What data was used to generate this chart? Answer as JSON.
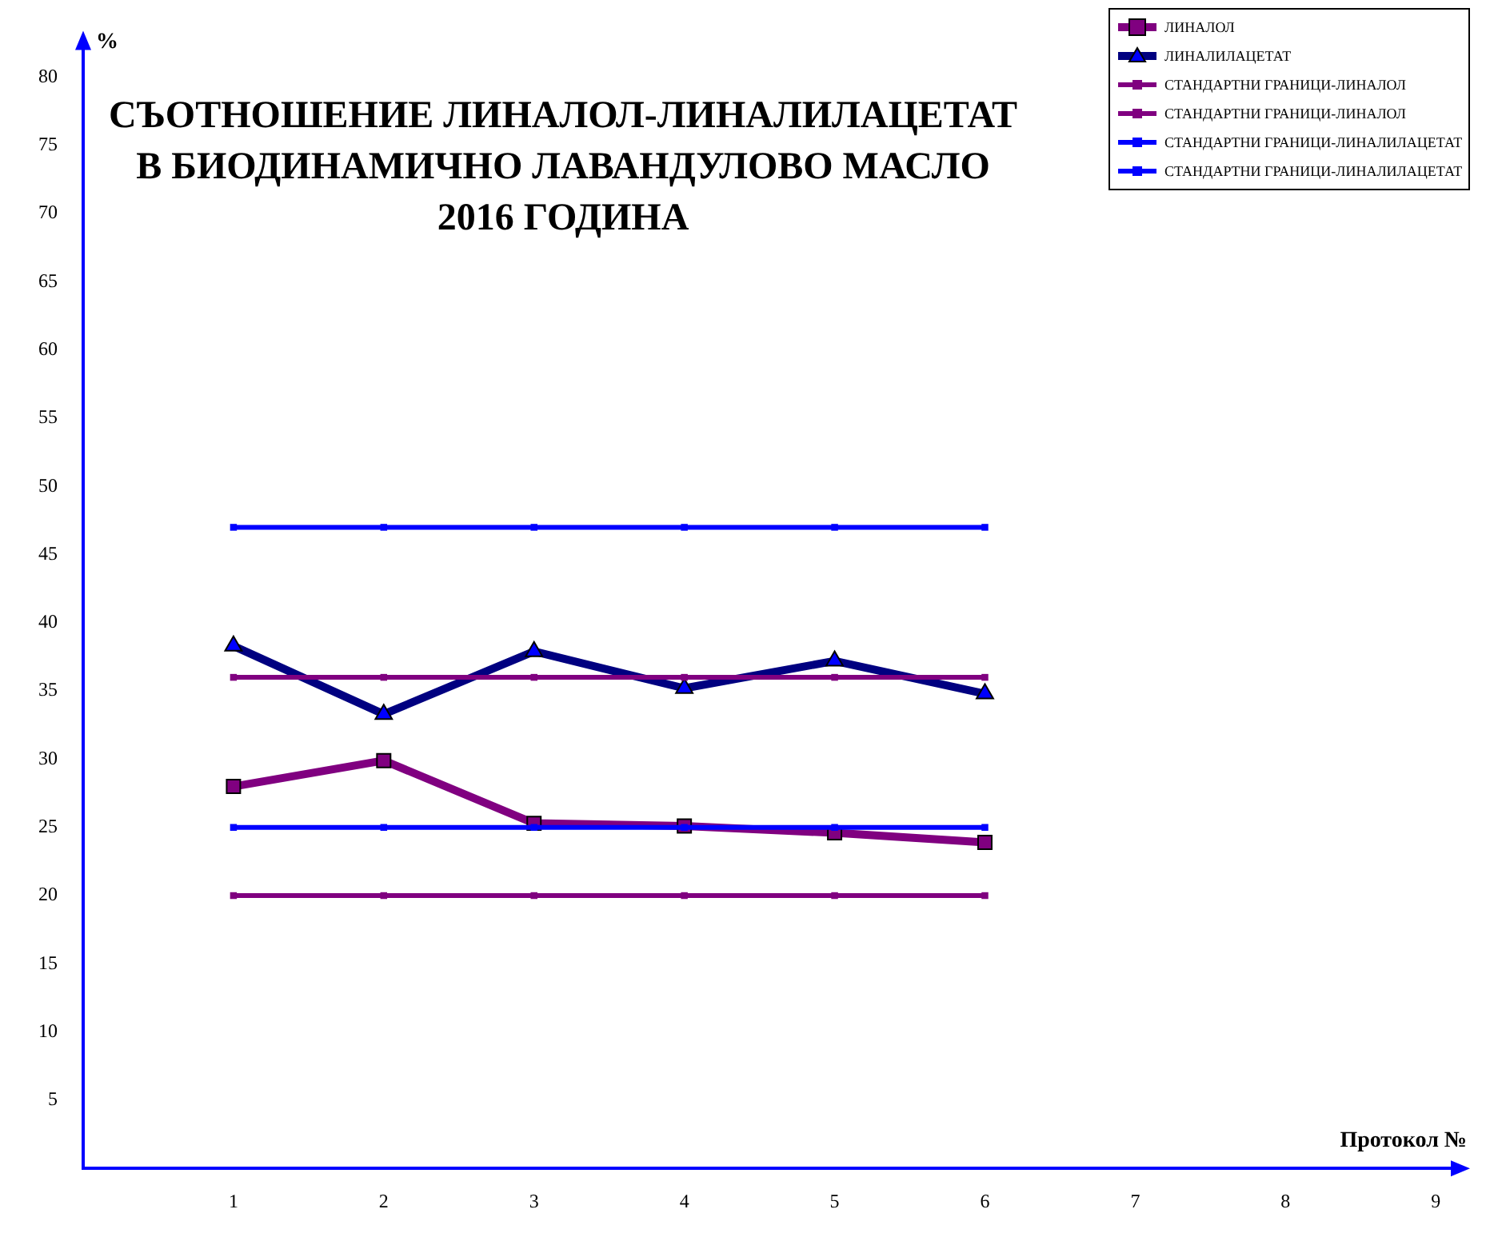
{
  "chart_data": {
    "type": "line",
    "title": [
      "СЪОТНОШЕНИЕ ЛИНАЛОЛ-ЛИНАЛИЛАЦЕТАТ",
      "В БИОДИНАМИЧНО ЛАВАНДУЛОВО МАСЛО",
      "2016 ГОДИНА"
    ],
    "xlabel": "Протокол №",
    "ylabel": "%",
    "x": [
      1,
      2,
      3,
      4,
      5,
      6
    ],
    "xlim": [
      0,
      9.1
    ],
    "xticks": [
      1,
      2,
      3,
      4,
      5,
      6,
      7,
      8,
      9
    ],
    "ylim": [
      0,
      82
    ],
    "yticks": [
      5,
      10,
      15,
      20,
      25,
      30,
      35,
      40,
      45,
      50,
      55,
      60,
      65,
      70,
      75,
      80
    ],
    "grid": false,
    "legend": "top right",
    "line_style": "solid",
    "series": [
      {
        "name": "ЛИНАЛОЛ",
        "color": "#800080",
        "marker": "square",
        "values": [
          28,
          29.9,
          25.3,
          25.1,
          24.6,
          23.9
        ]
      },
      {
        "name": "ЛИНАЛИЛАЦЕТАТ",
        "color": "#000080",
        "marker": "triangle",
        "values": [
          38.3,
          33.3,
          37.9,
          35.2,
          37.2,
          34.8
        ]
      },
      {
        "name": "СТАНДАРТНИ ГРАНИЦИ-ЛИНАЛОЛ",
        "color": "#800080",
        "marker": "square",
        "values": [
          36,
          36,
          36,
          36,
          36,
          36
        ]
      },
      {
        "name": "СТАНДАРТНИ ГРАНИЦИ-ЛИНАЛОЛ",
        "color": "#800080",
        "marker": "square",
        "values": [
          20,
          20,
          20,
          20,
          20,
          20
        ]
      },
      {
        "name": "СТАНДАРТНИ ГРАНИЦИ-ЛИНАЛИЛАЦЕТАТ",
        "color": "#0000ff",
        "marker": "square",
        "values": [
          25,
          25,
          25,
          25,
          25,
          25
        ]
      },
      {
        "name": "СТАНДАРТНИ ГРАНИЦИ-ЛИНАЛИЛАЦЕТАТ",
        "color": "#0000ff",
        "marker": "square",
        "values": [
          47,
          47,
          47,
          47,
          47,
          47
        ]
      }
    ]
  }
}
